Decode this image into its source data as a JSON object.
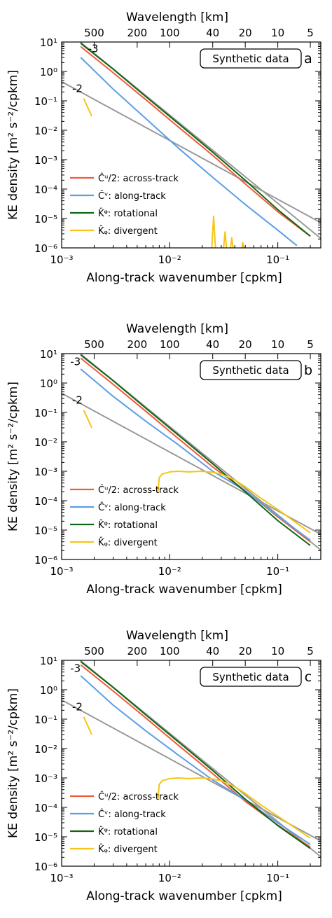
{
  "chart_data": [
    {
      "type": "line",
      "panel": "a",
      "xscale": "log",
      "yscale": "log",
      "xlim": [
        0.001,
        0.25
      ],
      "ylim": [
        1e-06,
        10
      ],
      "xlabel": "Along-track wavenumber  [cpkm]",
      "ylabel": "KE density  [m² s⁻²/cpkm]",
      "top_xlabel": "Wavelength [km]",
      "xticks": [
        0.001,
        0.01,
        0.1
      ],
      "xtick_labels": [
        "10⁻³",
        "10⁻²",
        "10⁻¹"
      ],
      "yticks": [
        1e-06,
        1e-05,
        0.0001,
        0.001,
        0.01,
        0.1,
        1,
        10
      ],
      "ytick_labels": [
        "10⁻⁶",
        "10⁻⁵",
        "10⁻⁴",
        "10⁻³",
        "10⁻²",
        "10⁻¹",
        "10⁰",
        "10¹"
      ],
      "top_ticks": [
        500,
        200,
        100,
        40,
        20,
        10,
        5
      ],
      "top_tick_labels": [
        "500",
        "200",
        "100",
        "40",
        "20",
        "10",
        "5"
      ],
      "box_label": "Synthetic data",
      "slope_labels": [
        {
          "text": "-3",
          "x": 0.00175,
          "y": 4.5
        },
        {
          "text": "-2",
          "x": 0.00125,
          "y": 0.2
        }
      ],
      "reference_lines": [
        {
          "name": "slope -3",
          "color": "#999999",
          "x": [
            0.0014,
            0.25
          ],
          "y": [
            12,
            2.1e-06
          ]
        },
        {
          "name": "slope -2",
          "color": "#999999",
          "x": [
            0.001,
            0.25
          ],
          "y": [
            0.45,
            7.2e-06
          ]
        }
      ],
      "series": [
        {
          "name": "Ĉᵘ/2: across-track",
          "color": "#f05a3c",
          "x": [
            0.0015,
            0.003,
            0.006,
            0.012,
            0.025,
            0.05,
            0.1,
            0.2
          ],
          "y": [
            7,
            0.9,
            0.11,
            0.013,
            0.0014,
            0.00015,
            1.7e-05,
            2.5e-06
          ]
        },
        {
          "name": "Ĉᵛ: along-track",
          "color": "#5b9ee6",
          "x": [
            0.0015,
            0.003,
            0.006,
            0.012,
            0.025,
            0.05,
            0.1,
            0.15
          ],
          "y": [
            3,
            0.25,
            0.025,
            0.0025,
            0.00025,
            3e-05,
            4e-06,
            1.2e-06
          ]
        },
        {
          "name": "K̂ᵠ: rotational",
          "color": "#116611",
          "x": [
            0.0015,
            0.003,
            0.006,
            0.012,
            0.025,
            0.05,
            0.1,
            0.2
          ],
          "y": [
            9,
            1.2,
            0.14,
            0.017,
            0.0018,
            0.0002,
            2e-05,
            2.5e-06
          ]
        },
        {
          "name": "K̂ᵩ: divergent",
          "color": "#f5c518",
          "segments": [
            {
              "x": [
                0.0016,
                0.0019
              ],
              "y": [
                0.12,
                0.03
              ]
            },
            {
              "x": [
                0.0245,
                0.0255,
                0.0265
              ],
              "y": [
                1e-06,
                1.2e-05,
                1e-06
              ]
            },
            {
              "x": [
                0.0315,
                0.0325,
                0.0335
              ],
              "y": [
                1e-06,
                3.5e-06,
                1e-06
              ]
            },
            {
              "x": [
                0.0365,
                0.0375,
                0.0385
              ],
              "y": [
                1e-06,
                2.2e-06,
                1e-06
              ]
            },
            {
              "x": [
                0.0465,
                0.0475,
                0.0485
              ],
              "y": [
                1e-06,
                1.5e-06,
                1e-06
              ]
            }
          ]
        }
      ]
    },
    {
      "type": "line",
      "panel": "b",
      "xscale": "log",
      "yscale": "log",
      "xlim": [
        0.001,
        0.25
      ],
      "ylim": [
        1e-06,
        10
      ],
      "xlabel": "Along-track wavenumber  [cpkm]",
      "ylabel": "KE density  [m² s⁻²/cpkm]",
      "top_xlabel": "Wavelength [km]",
      "xticks": [
        0.001,
        0.01,
        0.1
      ],
      "xtick_labels": [
        "10⁻³",
        "10⁻²",
        "10⁻¹"
      ],
      "yticks": [
        1e-06,
        1e-05,
        0.0001,
        0.001,
        0.01,
        0.1,
        1,
        10
      ],
      "ytick_labels": [
        "10⁻⁶",
        "10⁻⁵",
        "10⁻⁴",
        "10⁻³",
        "10⁻²",
        "10⁻¹",
        "10⁰",
        "10¹"
      ],
      "top_ticks": [
        500,
        200,
        100,
        40,
        20,
        10,
        5
      ],
      "top_tick_labels": [
        "500",
        "200",
        "100",
        "40",
        "20",
        "10",
        "5"
      ],
      "box_label": "Synthetic data",
      "slope_labels": [
        {
          "text": "-3",
          "x": 0.0012,
          "y": 4
        },
        {
          "text": "-2",
          "x": 0.00125,
          "y": 0.2
        }
      ],
      "reference_lines": [
        {
          "name": "slope -3",
          "color": "#999999",
          "x": [
            0.0014,
            0.25
          ],
          "y": [
            12,
            2.1e-06
          ]
        },
        {
          "name": "slope -2",
          "color": "#999999",
          "x": [
            0.001,
            0.25
          ],
          "y": [
            0.45,
            7.2e-06
          ]
        }
      ],
      "series": [
        {
          "name": "Ĉᵘ/2: across-track",
          "color": "#f05a3c",
          "x": [
            0.0015,
            0.003,
            0.006,
            0.012,
            0.025,
            0.05,
            0.1,
            0.2
          ],
          "y": [
            7,
            0.9,
            0.11,
            0.013,
            0.0014,
            0.00022,
            2.8e-05,
            4e-06
          ]
        },
        {
          "name": "Ĉᵛ: along-track",
          "color": "#5b9ee6",
          "x": [
            0.0015,
            0.003,
            0.006,
            0.012,
            0.025,
            0.05,
            0.1,
            0.2
          ],
          "y": [
            3,
            0.35,
            0.05,
            0.008,
            0.001,
            0.00022,
            3e-05,
            4.5e-06
          ]
        },
        {
          "name": "K̂ᵠ: rotational",
          "color": "#116611",
          "x": [
            0.0015,
            0.003,
            0.006,
            0.012,
            0.025,
            0.05,
            0.1,
            0.2
          ],
          "y": [
            9,
            1.2,
            0.14,
            0.017,
            0.0018,
            0.0002,
            2.1e-05,
            3e-06
          ]
        },
        {
          "name": "K̂ᵩ: divergent",
          "color": "#f5c518",
          "segments": [
            {
              "x": [
                0.0016,
                0.0019
              ],
              "y": [
                0.12,
                0.03
              ]
            },
            {
              "x": [
                0.0078,
                0.008,
                0.0085,
                0.01,
                0.012,
                0.015,
                0.02,
                0.025,
                0.03,
                0.04,
                0.05,
                0.07,
                0.1,
                0.2
              ],
              "y": [
                0.0002,
                0.0006,
                0.0008,
                0.00095,
                0.001,
                0.00095,
                0.001,
                0.00092,
                0.0008,
                0.0005,
                0.0003,
                0.00012,
                5e-05,
                8e-06
              ]
            }
          ]
        }
      ]
    },
    {
      "type": "line",
      "panel": "c",
      "xscale": "log",
      "yscale": "log",
      "xlim": [
        0.001,
        0.25
      ],
      "ylim": [
        1e-06,
        10
      ],
      "xlabel": "Along-track wavenumber  [cpkm]",
      "ylabel": "KE density  [m² s⁻²/cpkm]",
      "top_xlabel": "Wavelength [km]",
      "xticks": [
        0.001,
        0.01,
        0.1
      ],
      "xtick_labels": [
        "10⁻³",
        "10⁻²",
        "10⁻¹"
      ],
      "yticks": [
        1e-06,
        1e-05,
        0.0001,
        0.001,
        0.01,
        0.1,
        1,
        10
      ],
      "ytick_labels": [
        "10⁻⁶",
        "10⁻⁵",
        "10⁻⁴",
        "10⁻³",
        "10⁻²",
        "10⁻¹",
        "10⁰",
        "10¹"
      ],
      "top_ticks": [
        500,
        200,
        100,
        40,
        20,
        10,
        5
      ],
      "top_tick_labels": [
        "500",
        "200",
        "100",
        "40",
        "20",
        "10",
        "5"
      ],
      "box_label": "Synthetic data",
      "slope_labels": [
        {
          "text": "-3",
          "x": 0.0012,
          "y": 4
        },
        {
          "text": "-2",
          "x": 0.00125,
          "y": 0.2
        }
      ],
      "reference_lines": [
        {
          "name": "slope -3",
          "color": "#999999",
          "x": [
            0.0014,
            0.25
          ],
          "y": [
            12,
            2.1e-06
          ]
        },
        {
          "name": "slope -2",
          "color": "#999999",
          "x": [
            0.001,
            0.25
          ],
          "y": [
            0.45,
            7.2e-06
          ]
        }
      ],
      "series": [
        {
          "name": "Ĉᵘ/2: across-track",
          "color": "#f05a3c",
          "x": [
            0.0015,
            0.003,
            0.006,
            0.012,
            0.025,
            0.05,
            0.1,
            0.2
          ],
          "y": [
            7,
            0.9,
            0.11,
            0.013,
            0.0014,
            0.00016,
            2.5e-05,
            4.5e-06
          ]
        },
        {
          "name": "Ĉᵛ: along-track",
          "color": "#5b9ee6",
          "x": [
            0.0015,
            0.003,
            0.006,
            0.012,
            0.025,
            0.05,
            0.1,
            0.2
          ],
          "y": [
            3,
            0.3,
            0.04,
            0.006,
            0.00085,
            0.00018,
            3e-05,
            5.5e-06
          ]
        },
        {
          "name": "K̂ᵠ: rotational",
          "color": "#116611",
          "x": [
            0.0015,
            0.003,
            0.006,
            0.012,
            0.025,
            0.05,
            0.1,
            0.2
          ],
          "y": [
            9,
            1.2,
            0.14,
            0.017,
            0.0018,
            0.00019,
            2.4e-05,
            4e-06
          ]
        },
        {
          "name": "K̂ᵩ: divergent",
          "color": "#f5c518",
          "segments": [
            {
              "x": [
                0.0016,
                0.0019
              ],
              "y": [
                0.12,
                0.03
              ]
            },
            {
              "x": [
                0.0078,
                0.008,
                0.0085,
                0.01,
                0.012,
                0.015,
                0.02,
                0.025,
                0.03,
                0.04,
                0.05,
                0.07,
                0.1,
                0.2
              ],
              "y": [
                0.0002,
                0.0006,
                0.0008,
                0.00095,
                0.001,
                0.00095,
                0.001,
                0.00092,
                0.0008,
                0.0005,
                0.0003,
                0.00012,
                5e-05,
                9e-06
              ]
            }
          ]
        }
      ]
    }
  ]
}
